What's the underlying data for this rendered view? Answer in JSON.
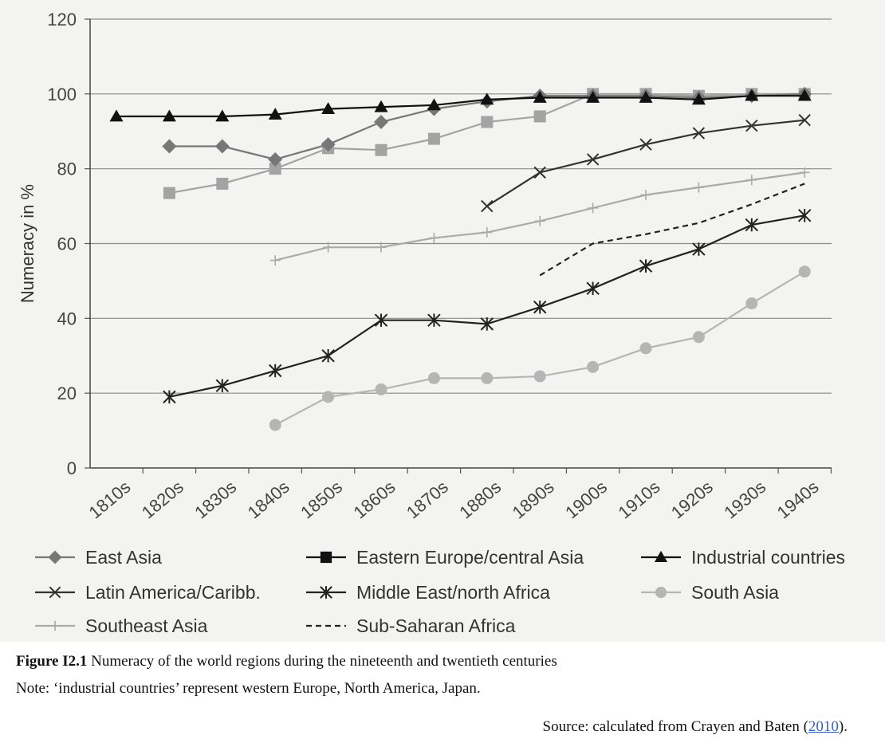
{
  "chart_data": {
    "type": "line",
    "ylabel": "Numeracy in %",
    "xlabel": "",
    "ylim": [
      0,
      120
    ],
    "yticks": [
      0,
      20,
      40,
      60,
      80,
      100,
      120
    ],
    "grid": "horizontal",
    "legend_position": "bottom",
    "categories": [
      "1810s",
      "1820s",
      "1830s",
      "1840s",
      "1850s",
      "1860s",
      "1870s",
      "1880s",
      "1890s",
      "1900s",
      "1910s",
      "1920s",
      "1930s",
      "1940s"
    ],
    "series": [
      {
        "name": "East Asia",
        "marker": "diamond",
        "color": "#777777",
        "dash": "solid",
        "values": [
          null,
          86,
          86,
          82.5,
          86.5,
          92.5,
          96,
          98,
          99.5,
          99.5,
          99.5,
          99,
          99.5,
          100
        ]
      },
      {
        "name": "Eastern Europe/central Asia",
        "marker": "square",
        "color": "#111111",
        "dash": "solid",
        "values": [
          null,
          null,
          null,
          null,
          null,
          null,
          null,
          null,
          null,
          null,
          null,
          null,
          null,
          null
        ]
      },
      {
        "name": "Industrial countries",
        "marker": "triangle",
        "color": "#111111",
        "dash": "solid",
        "values": [
          94,
          94,
          94,
          94.5,
          96,
          96.5,
          97,
          98.5,
          99,
          99,
          99,
          98.5,
          99.5,
          99.5
        ]
      },
      {
        "name": "Latin America/Caribb.",
        "marker": "x",
        "color": "#333333",
        "dash": "solid",
        "values": [
          null,
          null,
          null,
          null,
          null,
          null,
          null,
          70,
          79,
          82.5,
          86.5,
          89.5,
          91.5,
          93
        ]
      },
      {
        "name": "Middle East/north Africa",
        "marker": "star",
        "color": "#222222",
        "dash": "solid",
        "values": [
          null,
          19,
          22,
          26,
          30,
          39.5,
          39.5,
          38.5,
          43,
          48,
          54,
          58.5,
          65,
          67.5
        ]
      },
      {
        "name": "South Asia",
        "marker": "circle",
        "color": "#b5b5b5",
        "dash": "solid",
        "values": [
          null,
          null,
          null,
          11.5,
          19,
          21,
          24,
          24,
          24.5,
          27,
          32,
          35,
          44,
          52.5
        ]
      },
      {
        "name": "Southeast Asia",
        "marker": "plus",
        "color": "#aaaaaa",
        "dash": "solid",
        "values": [
          null,
          null,
          null,
          55.5,
          59,
          59,
          61.5,
          63,
          66,
          69.5,
          73,
          75,
          77,
          79
        ]
      },
      {
        "name": "Sub-Saharan Africa",
        "marker": "none",
        "color": "#222222",
        "dash": "dashed",
        "values": [
          null,
          null,
          null,
          null,
          null,
          null,
          null,
          null,
          51.5,
          60,
          62.5,
          65.5,
          70.5,
          76
        ]
      },
      {
        "name": "",
        "marker": "square",
        "color": "#a3a3a3",
        "dash": "solid",
        "values": [
          null,
          73.5,
          76,
          80,
          85.5,
          85,
          88,
          92.5,
          94,
          100,
          100,
          99.5,
          100,
          100
        ]
      }
    ]
  },
  "caption": {
    "figure_label": "Figure I2.1",
    "figure_text": " Numeracy of the world regions during the nineteenth and twentieth centuries",
    "note": "Note: ‘industrial countries’ represent western Europe, North America, Japan.",
    "source_prefix": "Source: calculated from Crayen and Baten (",
    "source_link": "2010",
    "source_suffix": ")."
  }
}
